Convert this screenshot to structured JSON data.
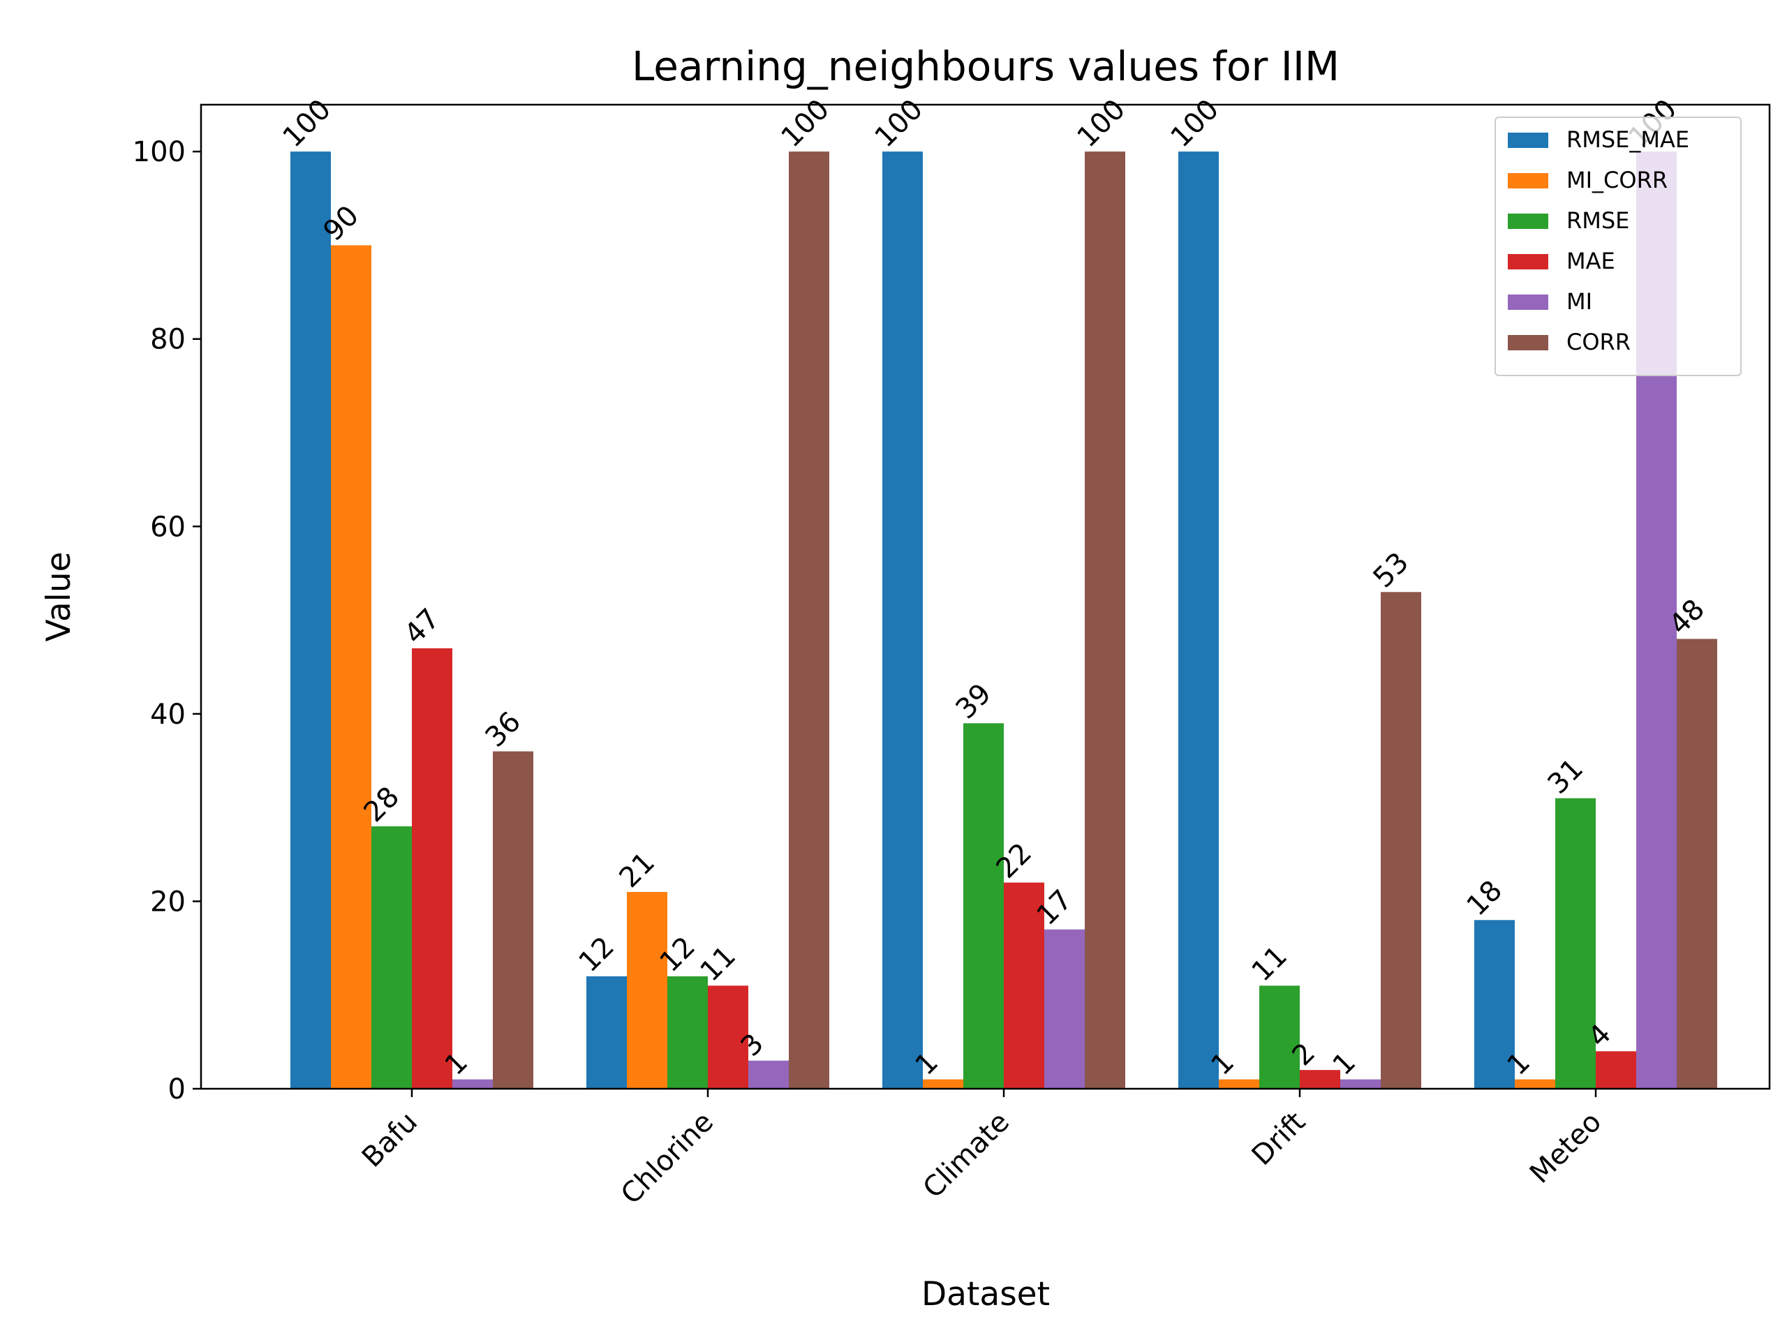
{
  "chart_data": {
    "type": "bar",
    "title": "Learning_neighbours values for IIM",
    "xlabel": "Dataset",
    "ylabel": "Value",
    "categories": [
      "Bafu",
      "Chlorine",
      "Climate",
      "Drift",
      "Meteo"
    ],
    "ylim": [
      0,
      105
    ],
    "yticks": [
      0,
      20,
      40,
      60,
      80,
      100
    ],
    "legend_position": "top-right",
    "grid": false,
    "series": [
      {
        "name": "RMSE_MAE",
        "color": "#1f77b4",
        "values": [
          100,
          12,
          100,
          100,
          18
        ]
      },
      {
        "name": "MI_CORR",
        "color": "#ff7f0e",
        "values": [
          90,
          21,
          1,
          1,
          1
        ]
      },
      {
        "name": "RMSE",
        "color": "#2ca02c",
        "values": [
          28,
          12,
          39,
          11,
          31
        ]
      },
      {
        "name": "MAE",
        "color": "#d62728",
        "values": [
          47,
          11,
          22,
          2,
          4
        ]
      },
      {
        "name": "MI",
        "color": "#9467bd",
        "values": [
          1,
          3,
          17,
          1,
          100
        ]
      },
      {
        "name": "CORR",
        "color": "#8c564b",
        "values": [
          36,
          100,
          100,
          53,
          48
        ]
      }
    ]
  }
}
